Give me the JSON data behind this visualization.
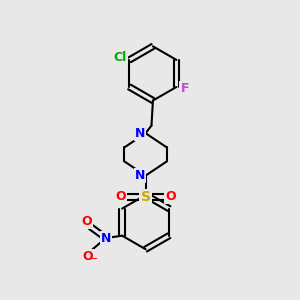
{
  "bg_color": "#e8e8e8",
  "bond_color": "#000000",
  "bond_width": 1.5,
  "N_color": "#0000ff",
  "O_color": "#ff0000",
  "S_color": "#ccaa00",
  "Cl_color": "#00aa00",
  "F_color": "#cc44cc",
  "figsize": [
    3.0,
    3.0
  ],
  "dpi": 100,
  "xlim": [
    0,
    10
  ],
  "ylim": [
    0,
    10
  ]
}
